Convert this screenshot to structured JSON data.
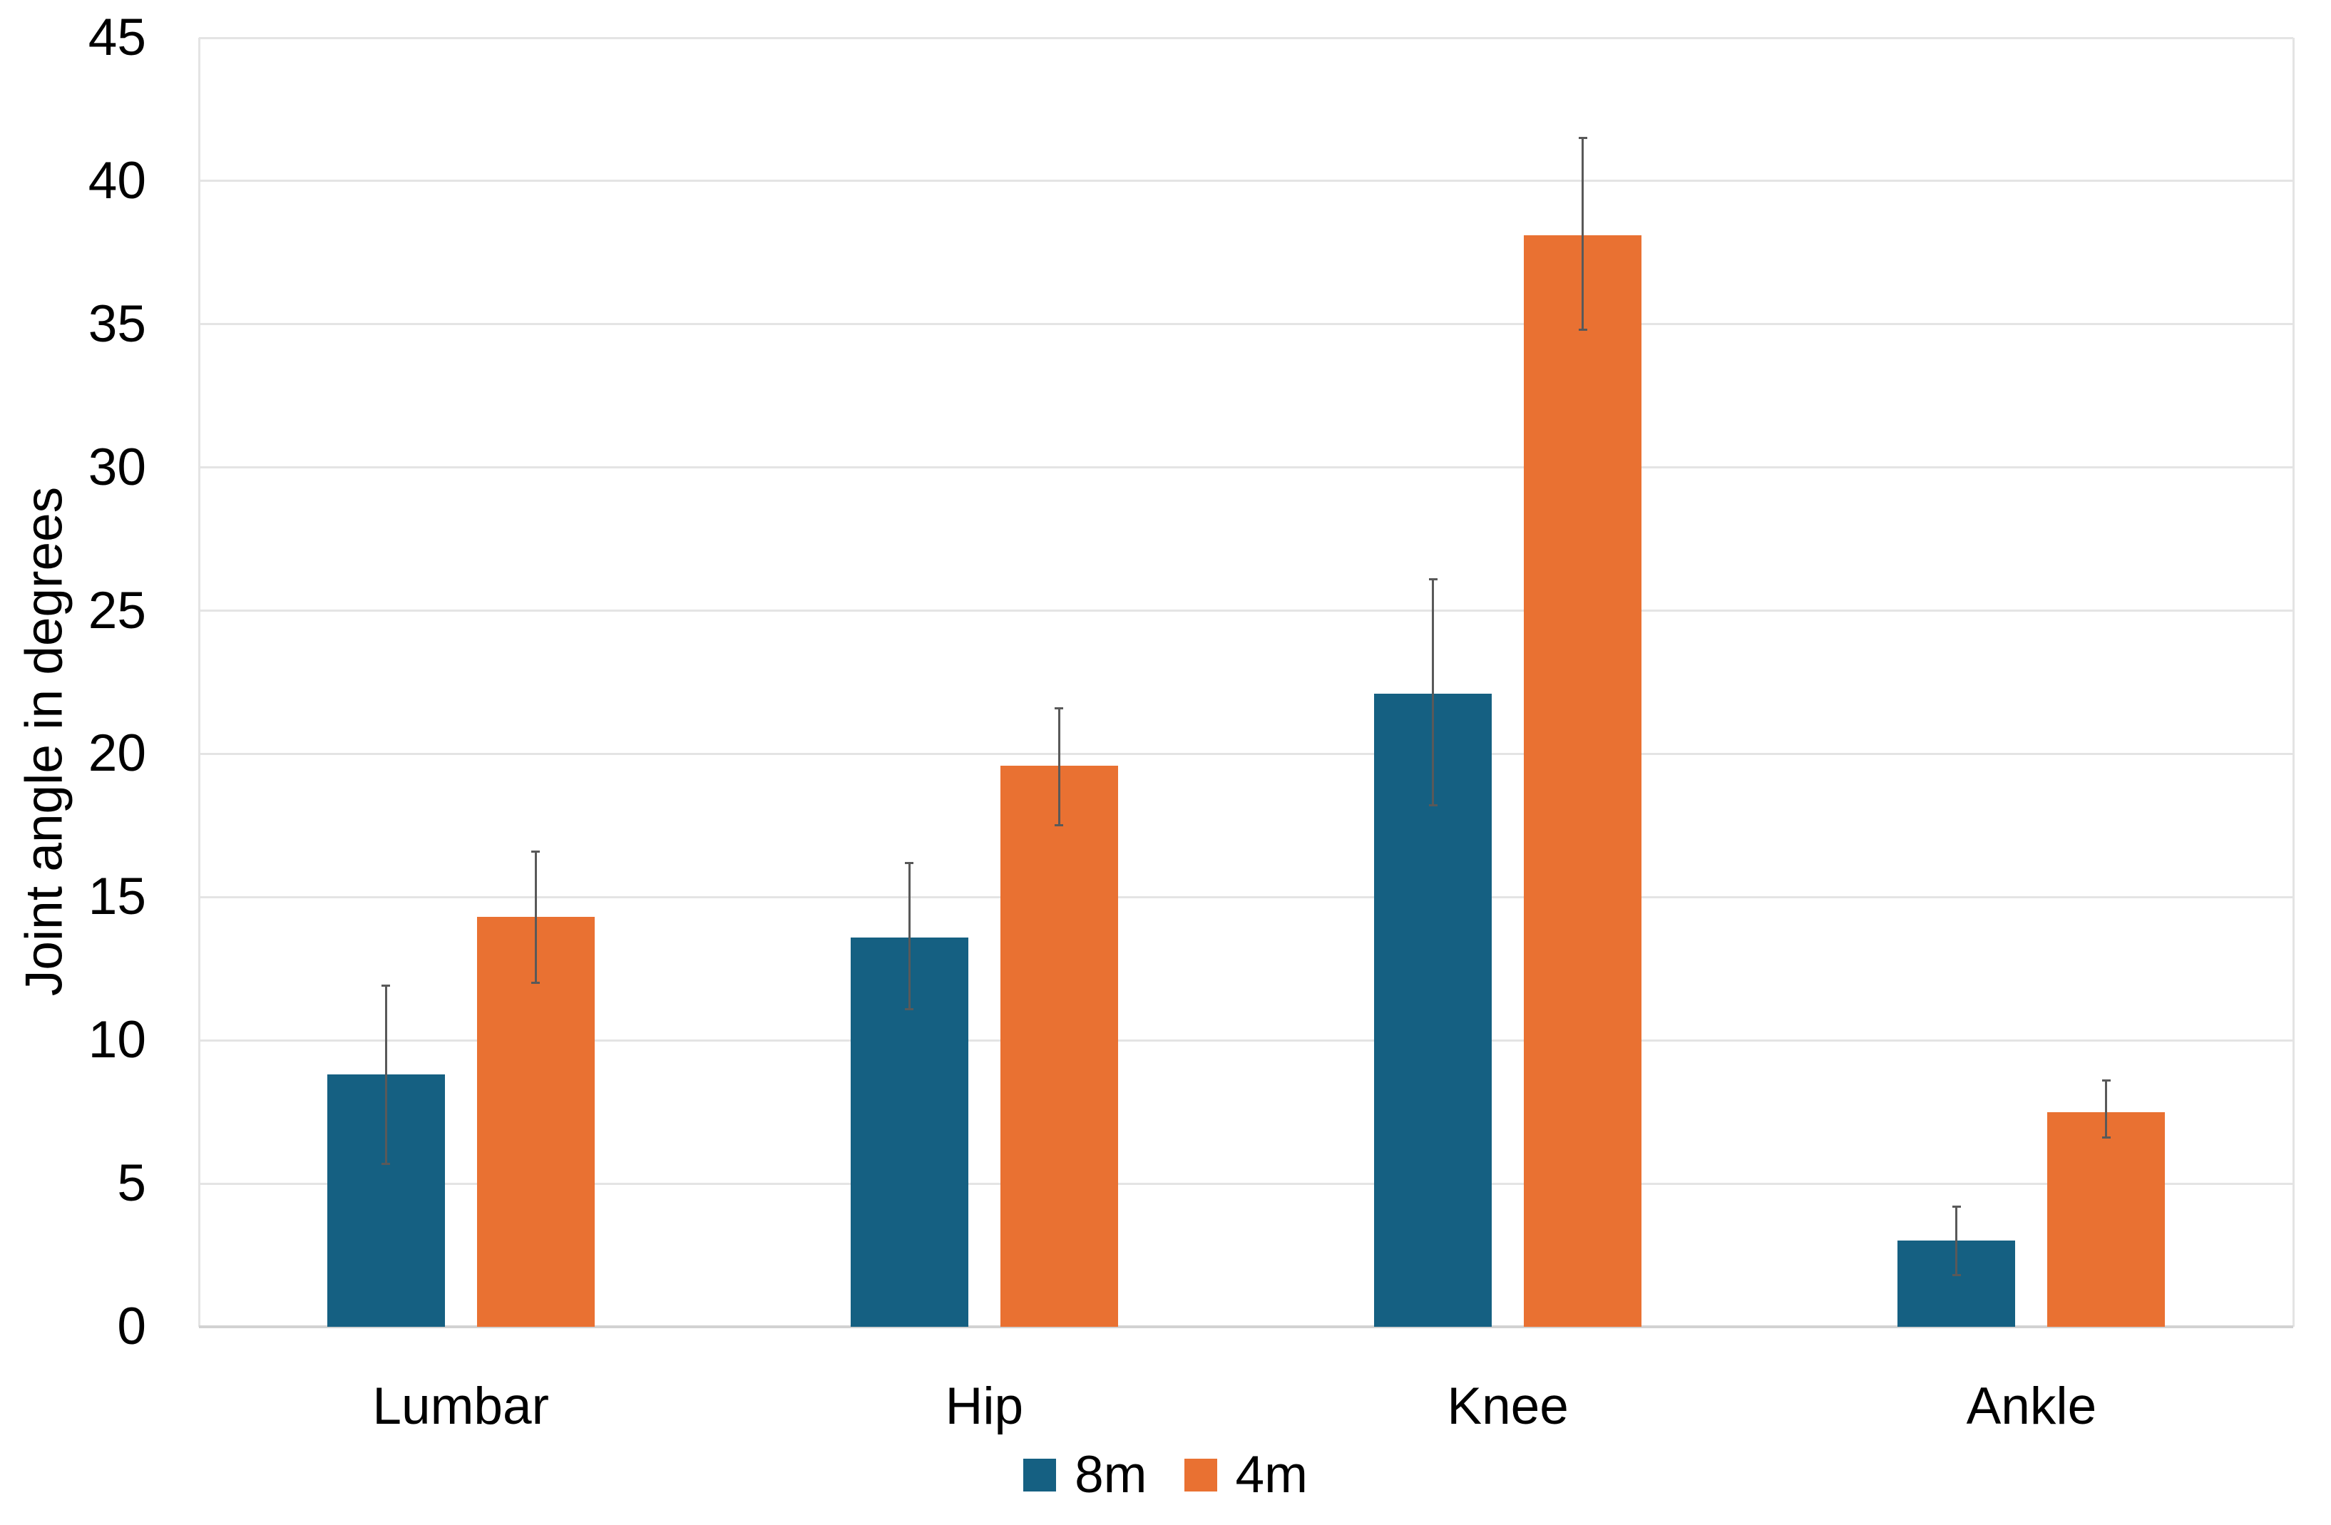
{
  "chart_data": {
    "type": "bar",
    "title": "",
    "ylabel": "Joint angle in degrees",
    "xlabel": "",
    "categories": [
      "Lumbar",
      "Hip",
      "Knee",
      "Ankle"
    ],
    "series": [
      {
        "name": "8m",
        "color": "#156082",
        "values": [
          8.8,
          13.6,
          22.1,
          3.0
        ],
        "error_low": [
          5.7,
          11.1,
          18.2,
          1.8
        ],
        "error_high": [
          11.9,
          16.2,
          26.1,
          4.2
        ]
      },
      {
        "name": "4m",
        "color": "#E97132",
        "values": [
          14.3,
          19.6,
          38.1,
          7.5
        ],
        "error_low": [
          12.0,
          17.5,
          34.8,
          6.6
        ],
        "error_high": [
          16.6,
          21.6,
          41.5,
          8.6
        ]
      }
    ],
    "ylim": [
      0,
      45
    ],
    "yticks": [
      0,
      5,
      10,
      15,
      20,
      25,
      30,
      35,
      40,
      45
    ],
    "grid": true,
    "has_error_bars": true,
    "legend_position": "bottom",
    "colors": {
      "grid": "#e4e4e4",
      "axis_line": "#d2d2d2",
      "error_bar": "#595959",
      "text": "#000000",
      "background": "#ffffff"
    }
  }
}
